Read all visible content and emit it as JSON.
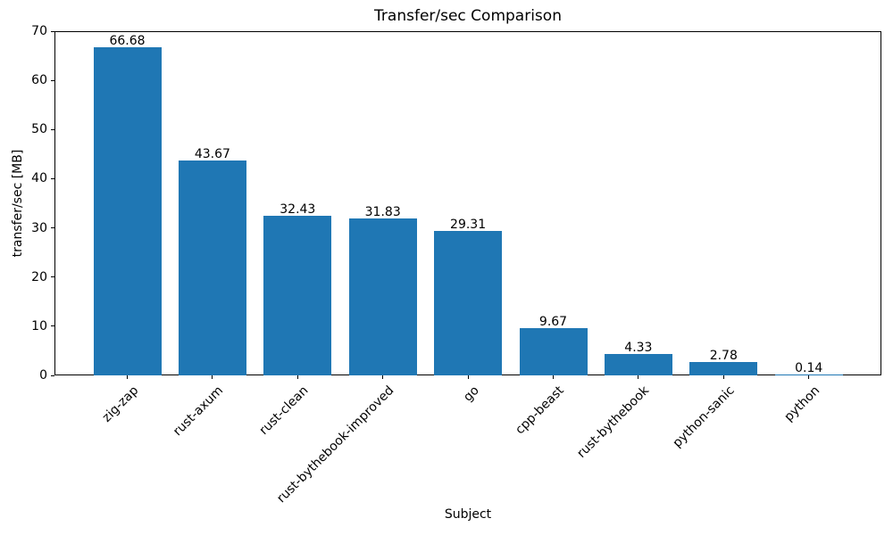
{
  "chart_data": {
    "type": "bar",
    "title": "Transfer/sec Comparison",
    "xlabel": "Subject",
    "ylabel": "transfer/sec [MB]",
    "categories": [
      "zig-zap",
      "rust-axum",
      "rust-clean",
      "rust-bythebook-improved",
      "go",
      "cpp-beast",
      "rust-bythebook",
      "python-sanic",
      "python"
    ],
    "values": [
      66.68,
      43.67,
      32.43,
      31.83,
      29.31,
      9.67,
      4.33,
      2.78,
      0.14
    ],
    "value_labels": [
      "66.68",
      "43.67",
      "32.43",
      "31.83",
      "29.31",
      "9.67",
      "4.33",
      "2.78",
      "0.14"
    ],
    "ylim": [
      0,
      70
    ],
    "yticks": [
      0,
      10,
      20,
      30,
      40,
      50,
      60,
      70
    ],
    "x_tick_rotation_deg": 45,
    "grid": false,
    "legend_position": "none",
    "bar_color": "#1f77b4",
    "axis_color": "#000000",
    "text_color": "#000000",
    "background_color": "#ffffff"
  }
}
